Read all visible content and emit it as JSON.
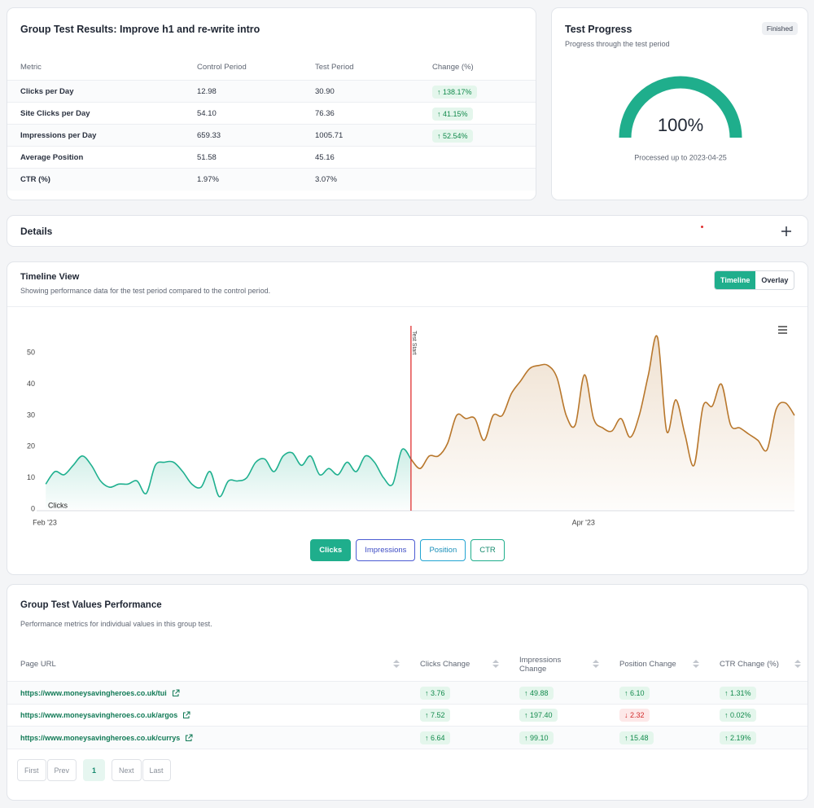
{
  "results": {
    "title": "Group Test Results: Improve h1 and re-write intro",
    "columns": [
      "Metric",
      "Control Period",
      "Test Period",
      "Change (%)"
    ],
    "rows": [
      [
        "Clicks per Day",
        "12.98",
        "30.90",
        "↑ 138.17%"
      ],
      [
        "Site Clicks per Day",
        "54.10",
        "76.36",
        "↑ 41.15%"
      ],
      [
        "Impressions per Day",
        "659.33",
        "1005.71",
        "↑ 52.54%"
      ],
      [
        "Average Position",
        "51.58",
        "45.16"
      ],
      [
        "CTR (%)",
        "1.97%",
        "3.07%"
      ]
    ]
  },
  "progress": {
    "title": "Test Progress",
    "status": "Finished",
    "subtitle": "Progress through the test period",
    "value": 100,
    "label": "100%",
    "note": "Processed up to 2023-04-25"
  },
  "details": {
    "title": "Details"
  },
  "timeline": {
    "title": "Timeline View",
    "subtitle": "Showing performance data for the test period compared to the control period.",
    "views": [
      "Timeline",
      "Overlay"
    ],
    "metrics": [
      "Clicks",
      "Impressions",
      "Position",
      "CTR"
    ]
  },
  "chart_data": {
    "type": "line",
    "categories": [
      "Feb '23",
      null,
      null,
      null,
      null,
      null,
      null,
      null,
      null,
      null,
      null,
      null,
      null,
      null,
      null,
      null,
      null,
      null,
      null,
      null,
      null,
      null,
      null,
      null,
      null,
      null,
      null,
      null,
      null,
      null,
      null,
      null,
      null,
      null,
      null,
      null,
      null,
      null,
      null,
      null,
      null,
      null,
      null,
      null,
      null,
      null,
      null,
      null,
      null,
      null,
      null,
      null,
      null,
      null,
      null,
      null,
      null,
      null,
      null,
      "Apr '23",
      null,
      null,
      null,
      null,
      null,
      null,
      null,
      null,
      null,
      null,
      null,
      null,
      null,
      null,
      null,
      null,
      null,
      null,
      null,
      null,
      null,
      null,
      null,
      null
    ],
    "series": [
      {
        "name": "Clicks",
        "color": "#1fb08f",
        "values": [
          null,
          8,
          12,
          11,
          14,
          17,
          14,
          9,
          7,
          8,
          8,
          9,
          5,
          14,
          15,
          15,
          12,
          8,
          7,
          12,
          4,
          9,
          9,
          10,
          15,
          16,
          12,
          17,
          18,
          14,
          17,
          11,
          13,
          11,
          15,
          12,
          17,
          15,
          10,
          8,
          19,
          16,
          null,
          null,
          null,
          null,
          null,
          null,
          null,
          null,
          null,
          null,
          null,
          null,
          null,
          null,
          null,
          null,
          null,
          null,
          null,
          null,
          null,
          null,
          null,
          null,
          null,
          null,
          null,
          null,
          null,
          null,
          null,
          null,
          null,
          null,
          null,
          null,
          null,
          null,
          null,
          null,
          null,
          null
        ]
      },
      {
        "color": "#b8772c",
        "values": [
          null,
          null,
          null,
          null,
          null,
          null,
          null,
          null,
          null,
          null,
          null,
          null,
          null,
          null,
          null,
          null,
          null,
          null,
          null,
          null,
          null,
          null,
          null,
          null,
          null,
          null,
          null,
          null,
          null,
          null,
          null,
          null,
          null,
          null,
          null,
          null,
          null,
          null,
          null,
          null,
          null,
          16,
          13,
          17,
          17,
          21,
          30,
          29,
          29,
          22,
          30,
          30,
          37,
          41,
          45,
          46,
          46,
          42,
          30,
          27,
          43,
          29,
          26,
          25,
          29,
          23,
          30,
          43,
          55,
          25,
          35,
          24,
          14,
          33,
          33,
          40,
          27,
          26,
          24,
          22,
          19,
          32,
          34,
          30
        ]
      }
    ],
    "annotation": "Test Start",
    "marker_color": "#e03131",
    "ylim": [
      0,
      60
    ],
    "yticks": [
      0,
      10,
      20,
      30,
      40,
      50
    ],
    "grid": false
  },
  "values_table": {
    "title": "Group Test Values Performance",
    "subtitle": "Performance metrics for individual values in this group test.",
    "columns": [
      "Page URL",
      "Clicks Change",
      "Impressions Change",
      "Position Change",
      "CTR Change (%)"
    ],
    "rows": [
      [
        "https://www.moneysavingheroes.co.uk/tui",
        "↑ 3.76",
        "↑ 49.88",
        "↑ 6.10",
        "↑ 1.31%"
      ],
      [
        "https://www.moneysavingheroes.co.uk/argos",
        "↑ 7.52",
        "↑ 197.40",
        "↓ 2.32",
        "↑ 0.02%"
      ],
      [
        "https://www.moneysavingheroes.co.uk/currys",
        "↑ 6.64",
        "↑ 99.10",
        "↑ 15.48",
        "↑ 2.19%"
      ]
    ],
    "pagination": [
      "First",
      "Prev",
      "1",
      "Next",
      "Last"
    ]
  }
}
